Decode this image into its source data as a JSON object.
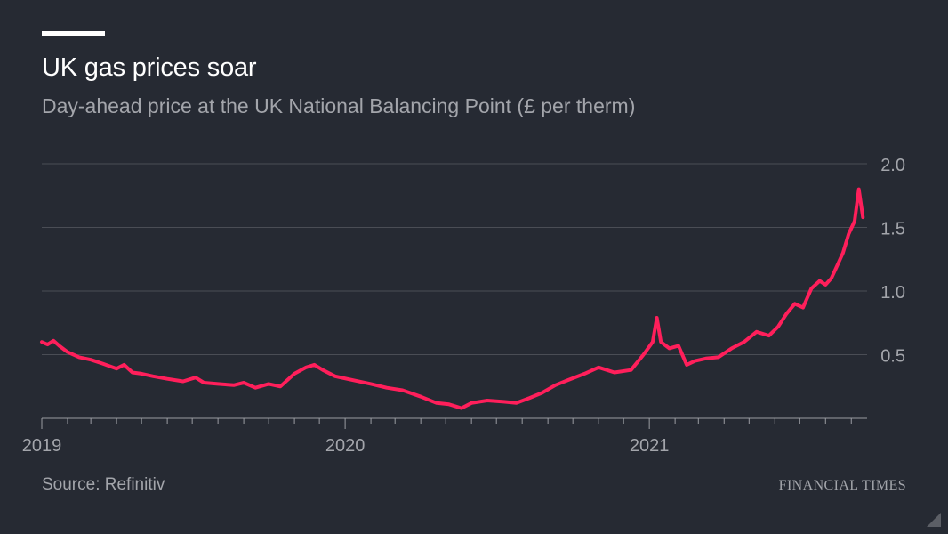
{
  "header": {
    "title": "UK gas prices soar",
    "subtitle": "Day-ahead price at the UK National Balancing Point (£ per therm)"
  },
  "footer": {
    "source": "Source: Refinitiv",
    "brand": "FINANCIAL TIMES"
  },
  "colors": {
    "background": "#262a33",
    "line": "#ff1f5b",
    "grid": "#4a4d55",
    "axis": "#9a9ca2",
    "text_muted": "#a3a5ab"
  },
  "chart_data": {
    "type": "line",
    "title": "UK gas prices soar",
    "subtitle": "Day-ahead price at the UK National Balancing Point (£ per therm)",
    "xlabel": "",
    "ylabel": "",
    "xlim": [
      "2019-01-01",
      "2021-09-20"
    ],
    "ylim": [
      0.0,
      2.0
    ],
    "x_tick_labels": [
      "2019",
      "2020",
      "2021"
    ],
    "x_tick_dates": [
      "2019-01-01",
      "2020-01-01",
      "2021-01-01"
    ],
    "y_ticks": [
      0.5,
      1.0,
      1.5,
      2.0
    ],
    "y_tick_labels": [
      "0.5",
      "1.0",
      "1.5",
      "2.0"
    ],
    "y_axis_side": "right",
    "grid": true,
    "series": [
      {
        "values": [
          [
            "2019-01-01",
            0.6
          ],
          [
            "2019-01-08",
            0.58
          ],
          [
            "2019-01-15",
            0.61
          ],
          [
            "2019-01-22",
            0.57
          ],
          [
            "2019-02-01",
            0.52
          ],
          [
            "2019-02-15",
            0.48
          ],
          [
            "2019-03-01",
            0.46
          ],
          [
            "2019-03-15",
            0.43
          ],
          [
            "2019-04-01",
            0.39
          ],
          [
            "2019-04-10",
            0.42
          ],
          [
            "2019-04-20",
            0.36
          ],
          [
            "2019-05-01",
            0.35
          ],
          [
            "2019-05-15",
            0.33
          ],
          [
            "2019-06-01",
            0.31
          ],
          [
            "2019-06-20",
            0.29
          ],
          [
            "2019-07-05",
            0.32
          ],
          [
            "2019-07-15",
            0.28
          ],
          [
            "2019-08-01",
            0.27
          ],
          [
            "2019-08-20",
            0.26
          ],
          [
            "2019-09-01",
            0.28
          ],
          [
            "2019-09-15",
            0.24
          ],
          [
            "2019-10-01",
            0.27
          ],
          [
            "2019-10-15",
            0.25
          ],
          [
            "2019-11-01",
            0.35
          ],
          [
            "2019-11-15",
            0.4
          ],
          [
            "2019-11-25",
            0.42
          ],
          [
            "2019-12-05",
            0.38
          ],
          [
            "2019-12-20",
            0.33
          ],
          [
            "2020-01-10",
            0.3
          ],
          [
            "2020-02-01",
            0.27
          ],
          [
            "2020-02-20",
            0.24
          ],
          [
            "2020-03-10",
            0.22
          ],
          [
            "2020-04-01",
            0.17
          ],
          [
            "2020-04-20",
            0.12
          ],
          [
            "2020-05-05",
            0.11
          ],
          [
            "2020-05-20",
            0.08
          ],
          [
            "2020-06-01",
            0.12
          ],
          [
            "2020-06-20",
            0.14
          ],
          [
            "2020-07-10",
            0.13
          ],
          [
            "2020-07-25",
            0.12
          ],
          [
            "2020-08-10",
            0.16
          ],
          [
            "2020-08-25",
            0.2
          ],
          [
            "2020-09-10",
            0.26
          ],
          [
            "2020-09-25",
            0.3
          ],
          [
            "2020-10-15",
            0.35
          ],
          [
            "2020-11-01",
            0.4
          ],
          [
            "2020-11-20",
            0.36
          ],
          [
            "2020-12-10",
            0.38
          ],
          [
            "2020-12-25",
            0.5
          ],
          [
            "2021-01-05",
            0.6
          ],
          [
            "2021-01-10",
            0.79
          ],
          [
            "2021-01-15",
            0.6
          ],
          [
            "2021-01-25",
            0.55
          ],
          [
            "2021-02-05",
            0.57
          ],
          [
            "2021-02-15",
            0.42
          ],
          [
            "2021-02-25",
            0.45
          ],
          [
            "2021-03-10",
            0.47
          ],
          [
            "2021-03-25",
            0.48
          ],
          [
            "2021-04-10",
            0.55
          ],
          [
            "2021-04-25",
            0.6
          ],
          [
            "2021-05-10",
            0.68
          ],
          [
            "2021-05-25",
            0.65
          ],
          [
            "2021-06-05",
            0.72
          ],
          [
            "2021-06-15",
            0.82
          ],
          [
            "2021-06-25",
            0.9
          ],
          [
            "2021-07-05",
            0.87
          ],
          [
            "2021-07-15",
            1.02
          ],
          [
            "2021-07-25",
            1.08
          ],
          [
            "2021-08-01",
            1.05
          ],
          [
            "2021-08-08",
            1.1
          ],
          [
            "2021-08-15",
            1.2
          ],
          [
            "2021-08-22",
            1.3
          ],
          [
            "2021-08-29",
            1.45
          ],
          [
            "2021-09-05",
            1.55
          ],
          [
            "2021-09-10",
            1.8
          ],
          [
            "2021-09-15",
            1.58
          ]
        ]
      }
    ]
  }
}
